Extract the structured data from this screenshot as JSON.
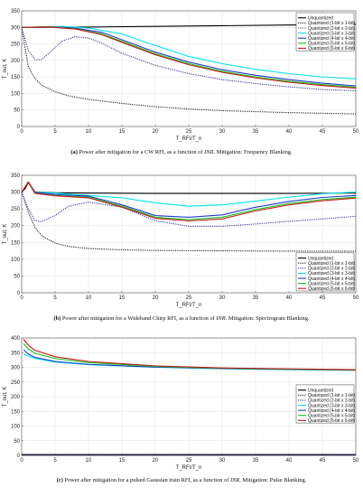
{
  "chart_data": [
    {
      "type": "line",
      "ylabel": "T_out, K",
      "xlabel": "T_RFI/T_n",
      "xlim": [
        0,
        50
      ],
      "ylim": [
        0,
        350
      ],
      "xticks": [
        0,
        5,
        10,
        15,
        20,
        25,
        30,
        35,
        40,
        45,
        50
      ],
      "yticks": [
        0,
        50,
        100,
        150,
        200,
        250,
        300,
        350
      ],
      "grid": true,
      "legend_position": "top-right",
      "series": [
        {
          "name": "Unquantized",
          "color": "#000000",
          "dash": "solid",
          "x": [
            0,
            10,
            20,
            30,
            40,
            50
          ],
          "values": [
            300,
            301,
            303,
            305,
            307,
            309
          ]
        },
        {
          "name": "Quantized (1-bit x 1-bit)",
          "color": "#222222",
          "dash": "dotted",
          "x": [
            0,
            1,
            2,
            3,
            5,
            7,
            10,
            15,
            20,
            25,
            30,
            40,
            50
          ],
          "values": [
            300,
            180,
            145,
            125,
            105,
            93,
            82,
            70,
            60,
            53,
            48,
            42,
            38
          ]
        },
        {
          "name": "Quantized (2-bit x 2-bit)",
          "color": "#3a3aa8",
          "dash": "dotted",
          "x": [
            0,
            1,
            2,
            3,
            4,
            6,
            8,
            10,
            12,
            15,
            20,
            25,
            30,
            35,
            40,
            45,
            50
          ],
          "values": [
            300,
            230,
            202,
            203,
            220,
            258,
            272,
            268,
            252,
            222,
            185,
            160,
            142,
            130,
            120,
            112,
            108
          ]
        },
        {
          "name": "Quantized (3-bit x 3-bit)",
          "color": "#00e5ee",
          "dash": "solid",
          "x": [
            0,
            3,
            6,
            10,
            15,
            20,
            25,
            30,
            35,
            40,
            45,
            50
          ],
          "values": [
            300,
            301,
            303,
            298,
            280,
            245,
            212,
            190,
            173,
            160,
            150,
            144
          ]
        },
        {
          "name": "Quantized (4-bit x 4-bit)",
          "color": "#1e3ad0",
          "dash": "solid",
          "x": [
            0,
            4,
            8,
            12,
            16,
            20,
            25,
            30,
            35,
            40,
            45,
            50
          ],
          "values": [
            300,
            302,
            298,
            285,
            255,
            225,
            195,
            172,
            155,
            142,
            131,
            123
          ]
        },
        {
          "name": "Quantized (5-bit x 5-bit)",
          "color": "#18c018",
          "dash": "solid",
          "x": [
            0,
            4,
            8,
            12,
            16,
            20,
            25,
            30,
            35,
            40,
            45,
            50
          ],
          "values": [
            300,
            302,
            296,
            280,
            250,
            220,
            190,
            167,
            150,
            137,
            127,
            119
          ]
        },
        {
          "name": "Quantized (6-bit x 6-bit)",
          "color": "#c81818",
          "dash": "solid",
          "x": [
            0,
            4,
            8,
            12,
            16,
            20,
            25,
            30,
            35,
            40,
            45,
            50
          ],
          "values": [
            300,
            301,
            295,
            278,
            247,
            217,
            187,
            164,
            147,
            134,
            124,
            116
          ]
        }
      ],
      "caption_label": "(a)",
      "caption_text": "Power after mitigation for a CW RFI, as a function of",
      "caption_italic": "INR",
      "caption_tail": ". Mitigation: Frequency Blanking."
    },
    {
      "type": "line",
      "ylabel": "T_out, K",
      "xlabel": "T_RFI/T_n",
      "xlim": [
        0,
        50
      ],
      "ylim": [
        0,
        350
      ],
      "xticks": [
        0,
        5,
        10,
        15,
        20,
        25,
        30,
        35,
        40,
        45,
        50
      ],
      "yticks": [
        0,
        50,
        100,
        150,
        200,
        250,
        300,
        350
      ],
      "grid": true,
      "legend_position": "bottom-right",
      "series": [
        {
          "name": "Unquantized",
          "color": "#000000",
          "dash": "solid",
          "x": [
            0,
            0.5,
            1,
            2,
            5,
            10,
            20,
            30,
            40,
            50
          ],
          "values": [
            300,
            310,
            328,
            300,
            298,
            297,
            296,
            296,
            296,
            297
          ]
        },
        {
          "name": "Quantized (1-bit x 1-bit)",
          "color": "#222222",
          "dash": "dotted",
          "x": [
            0,
            1,
            2,
            3,
            5,
            7,
            10,
            15,
            20,
            30,
            40,
            50
          ],
          "values": [
            300,
            240,
            195,
            170,
            148,
            138,
            132,
            128,
            126,
            125,
            124,
            124
          ]
        },
        {
          "name": "Quantized (2-bit x 2-bit)",
          "color": "#3a3aa8",
          "dash": "dotted",
          "x": [
            0,
            1,
            2,
            3,
            5,
            7,
            10,
            15,
            20,
            25,
            30,
            35,
            40,
            45,
            50
          ],
          "values": [
            300,
            250,
            215,
            212,
            230,
            258,
            270,
            255,
            215,
            198,
            198,
            205,
            213,
            220,
            228
          ]
        },
        {
          "name": "Quantized (3-bit x 3-bit)",
          "color": "#00e5ee",
          "dash": "solid",
          "x": [
            0,
            1,
            2,
            5,
            10,
            15,
            20,
            25,
            30,
            35,
            40,
            45,
            50
          ],
          "values": [
            300,
            330,
            300,
            297,
            290,
            283,
            268,
            258,
            262,
            273,
            285,
            295,
            300
          ]
        },
        {
          "name": "Quantized (4-bit x 4-bit)",
          "color": "#1e3ad0",
          "dash": "solid",
          "x": [
            0,
            1,
            2,
            5,
            10,
            15,
            20,
            25,
            30,
            35,
            40,
            45,
            50
          ],
          "values": [
            300,
            330,
            300,
            293,
            288,
            262,
            230,
            225,
            232,
            255,
            272,
            284,
            290
          ]
        },
        {
          "name": "Quantized (5-bit x 5-bit)",
          "color": "#18c018",
          "dash": "solid",
          "x": [
            0,
            1,
            2,
            5,
            10,
            15,
            20,
            25,
            30,
            35,
            40,
            45,
            50
          ],
          "values": [
            300,
            330,
            297,
            290,
            285,
            258,
            225,
            218,
            225,
            248,
            266,
            278,
            285
          ]
        },
        {
          "name": "Quantized (6-bit x 6-bit)",
          "color": "#c81818",
          "dash": "solid",
          "x": [
            0,
            1,
            2,
            5,
            10,
            15,
            20,
            25,
            30,
            35,
            40,
            45,
            50
          ],
          "values": [
            300,
            330,
            296,
            289,
            283,
            255,
            222,
            214,
            220,
            244,
            262,
            274,
            282
          ]
        }
      ],
      "caption_label": "(b)",
      "caption_text": "Power after mitigation for a Wideband Chirp RFI, as a function of",
      "caption_italic": "INR",
      "caption_tail": ". Mitigation: Spectrogram Blanking."
    },
    {
      "type": "line",
      "ylabel": "T_out, K",
      "xlabel": "T_RFI/T_n",
      "xlim": [
        0,
        50
      ],
      "ylim": [
        0,
        400
      ],
      "xticks": [
        0,
        5,
        10,
        15,
        20,
        25,
        30,
        35,
        40,
        45,
        50
      ],
      "yticks": [
        0,
        50,
        100,
        150,
        200,
        250,
        300,
        350,
        400
      ],
      "grid": true,
      "legend_position": "right",
      "series": [
        {
          "name": "Unquantized",
          "color": "#000000",
          "dash": "solid",
          "x": [
            0,
            10,
            20,
            30,
            40,
            50
          ],
          "values": [
            3,
            3,
            3,
            3,
            3,
            3
          ]
        },
        {
          "name": "Quantized (1-bit x 1-bit)",
          "color": "#222222",
          "dash": "dotted",
          "x": [
            0,
            10,
            20,
            30,
            40,
            50
          ],
          "values": [
            1,
            1,
            1,
            1,
            1,
            1
          ]
        },
        {
          "name": "Quantized (2-bit x 2-bit)",
          "color": "#3a3aa8",
          "dash": "dotted",
          "x": [
            0,
            10,
            20,
            30,
            40,
            50
          ],
          "values": [
            0,
            0,
            0,
            0,
            0,
            0
          ]
        },
        {
          "name": "Quantized (3-bit x 3-bit)",
          "color": "#00e5ee",
          "dash": "solid",
          "x": [
            0.3,
            1,
            2,
            5,
            10,
            20,
            30,
            40,
            50
          ],
          "values": [
            345,
            338,
            330,
            318,
            309,
            300,
            295,
            292,
            290
          ]
        },
        {
          "name": "Quantized (4-bit x 4-bit)",
          "color": "#1e3ad0",
          "dash": "solid",
          "x": [
            0.3,
            1,
            2,
            5,
            10,
            20,
            30,
            40,
            50
          ],
          "values": [
            360,
            345,
            334,
            320,
            310,
            301,
            296,
            293,
            290
          ]
        },
        {
          "name": "Quantized (5-bit x 5-bit)",
          "color": "#18c018",
          "dash": "solid",
          "x": [
            0.3,
            1,
            2,
            5,
            10,
            20,
            30,
            40,
            50
          ],
          "values": [
            380,
            362,
            348,
            330,
            316,
            303,
            297,
            294,
            291
          ]
        },
        {
          "name": "Quantized (6-bit x 6-bit)",
          "color": "#c81818",
          "dash": "solid",
          "x": [
            0.3,
            1,
            2,
            5,
            10,
            20,
            30,
            40,
            50
          ],
          "values": [
            395,
            375,
            358,
            336,
            320,
            305,
            298,
            295,
            292
          ]
        }
      ],
      "caption_label": "(c)",
      "caption_text": "Power after mitigation for a pulsed Gaussian train RFI, as a function of",
      "caption_italic": "INR",
      "caption_tail": ". Mitigation: Pulse Blanking."
    }
  ]
}
